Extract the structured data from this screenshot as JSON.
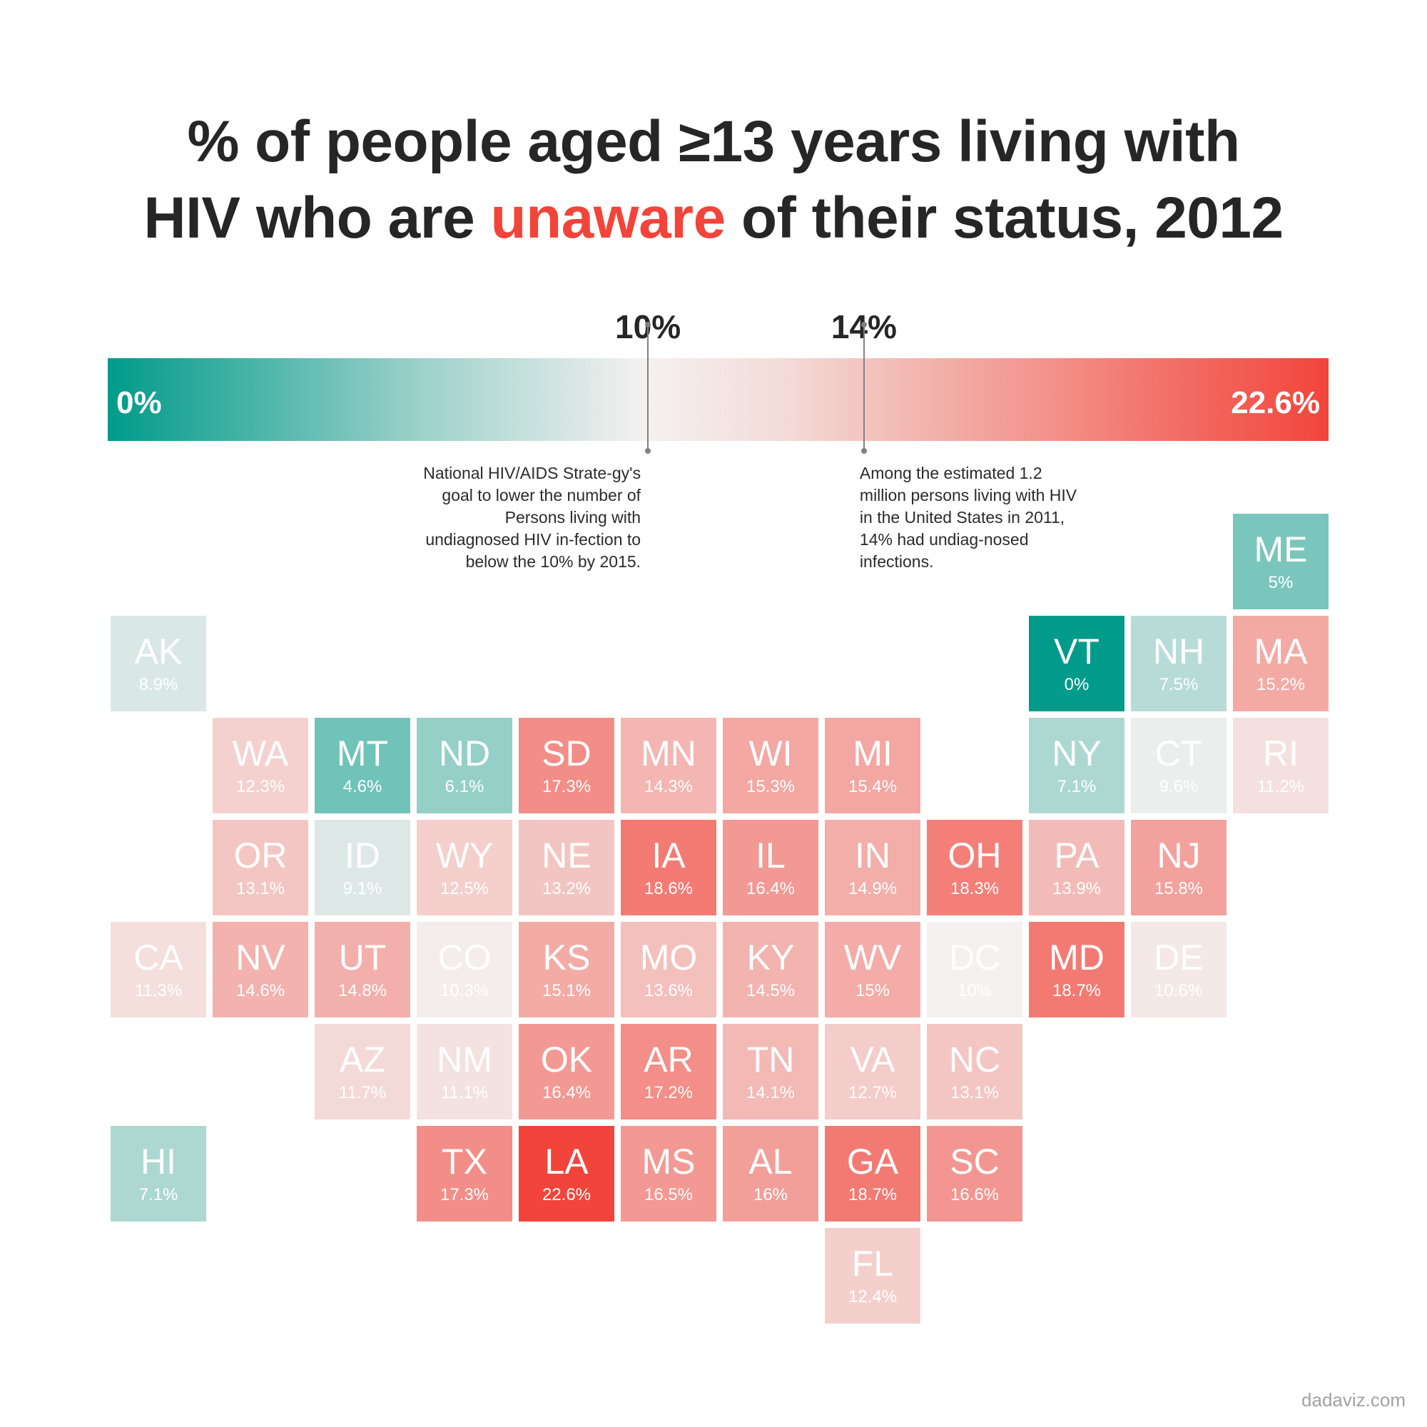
{
  "title": {
    "line1": "% of people aged ≥13 years living with",
    "line2_before": "HIV who are ",
    "line2_highlight": "unaware",
    "line2_after": " of their status, 2012"
  },
  "legend": {
    "min_label": "0%",
    "max_label": "22.6%",
    "min_value": 0,
    "max_value": 22.6,
    "low_color": "#009b8a",
    "mid_color": "#f4f1f0",
    "high_color": "#f2443a",
    "markers": [
      {
        "value": 10,
        "label": "10%",
        "note": "National HIV/AIDS Strate-gy's goal to lower the number of Persons living with undiagnosed HIV in-fection to below the 10% by 2015."
      },
      {
        "value": 14,
        "label": "14%",
        "note": "Among the estimated 1.2 million persons living with HIV in the United States in 2011, 14% had undiag-nosed infections."
      }
    ]
  },
  "map_data": {
    "type": "tile-grid",
    "states": [
      {
        "abbr": "ME",
        "label": "5%",
        "value": 5,
        "col": 11,
        "row": 0
      },
      {
        "abbr": "AK",
        "label": "8.9%",
        "value": 8.9,
        "col": 0,
        "row": 1
      },
      {
        "abbr": "VT",
        "label": "0%",
        "value": 0,
        "col": 9,
        "row": 1
      },
      {
        "abbr": "NH",
        "label": "7.5%",
        "value": 7.5,
        "col": 10,
        "row": 1
      },
      {
        "abbr": "MA",
        "label": "15.2%",
        "value": 15.2,
        "col": 11,
        "row": 1
      },
      {
        "abbr": "WA",
        "label": "12.3%",
        "value": 12.3,
        "col": 1,
        "row": 2
      },
      {
        "abbr": "MT",
        "label": "4.6%",
        "value": 4.6,
        "col": 2,
        "row": 2
      },
      {
        "abbr": "ND",
        "label": "6.1%",
        "value": 6.1,
        "col": 3,
        "row": 2
      },
      {
        "abbr": "SD",
        "label": "17.3%",
        "value": 17.3,
        "col": 4,
        "row": 2
      },
      {
        "abbr": "MN",
        "label": "14.3%",
        "value": 14.3,
        "col": 5,
        "row": 2
      },
      {
        "abbr": "WI",
        "label": "15.3%",
        "value": 15.3,
        "col": 6,
        "row": 2
      },
      {
        "abbr": "MI",
        "label": "15.4%",
        "value": 15.4,
        "col": 7,
        "row": 2
      },
      {
        "abbr": "NY",
        "label": "7.1%",
        "value": 7.1,
        "col": 9,
        "row": 2
      },
      {
        "abbr": "CT",
        "label": "9.6%",
        "value": 9.6,
        "col": 10,
        "row": 2
      },
      {
        "abbr": "RI",
        "label": "11.2%",
        "value": 11.2,
        "col": 11,
        "row": 2
      },
      {
        "abbr": "OR",
        "label": "13.1%",
        "value": 13.1,
        "col": 1,
        "row": 3
      },
      {
        "abbr": "ID",
        "label": "9.1%",
        "value": 9.1,
        "col": 2,
        "row": 3
      },
      {
        "abbr": "WY",
        "label": "12.5%",
        "value": 12.5,
        "col": 3,
        "row": 3
      },
      {
        "abbr": "NE",
        "label": "13.2%",
        "value": 13.2,
        "col": 4,
        "row": 3
      },
      {
        "abbr": "IA",
        "label": "18.6%",
        "value": 18.6,
        "col": 5,
        "row": 3
      },
      {
        "abbr": "IL",
        "label": "16.4%",
        "value": 16.4,
        "col": 6,
        "row": 3
      },
      {
        "abbr": "IN",
        "label": "14.9%",
        "value": 14.9,
        "col": 7,
        "row": 3
      },
      {
        "abbr": "OH",
        "label": "18.3%",
        "value": 18.3,
        "col": 8,
        "row": 3
      },
      {
        "abbr": "PA",
        "label": "13.9%",
        "value": 13.9,
        "col": 9,
        "row": 3
      },
      {
        "abbr": "NJ",
        "label": "15.8%",
        "value": 15.8,
        "col": 10,
        "row": 3
      },
      {
        "abbr": "CA",
        "label": "11.3%",
        "value": 11.3,
        "col": 0,
        "row": 4
      },
      {
        "abbr": "NV",
        "label": "14.6%",
        "value": 14.6,
        "col": 1,
        "row": 4
      },
      {
        "abbr": "UT",
        "label": "14.8%",
        "value": 14.8,
        "col": 2,
        "row": 4
      },
      {
        "abbr": "CO",
        "label": "10.3%",
        "value": 10.3,
        "col": 3,
        "row": 4
      },
      {
        "abbr": "KS",
        "label": "15.1%",
        "value": 15.1,
        "col": 4,
        "row": 4
      },
      {
        "abbr": "MO",
        "label": "13.6%",
        "value": 13.6,
        "col": 5,
        "row": 4
      },
      {
        "abbr": "KY",
        "label": "14.5%",
        "value": 14.5,
        "col": 6,
        "row": 4
      },
      {
        "abbr": "WV",
        "label": "15%",
        "value": 15,
        "col": 7,
        "row": 4
      },
      {
        "abbr": "DC",
        "label": "10%",
        "value": 10,
        "col": 8,
        "row": 4
      },
      {
        "abbr": "MD",
        "label": "18.7%",
        "value": 18.7,
        "col": 9,
        "row": 4
      },
      {
        "abbr": "DE",
        "label": "10.6%",
        "value": 10.6,
        "col": 10,
        "row": 4
      },
      {
        "abbr": "AZ",
        "label": "11.7%",
        "value": 11.7,
        "col": 2,
        "row": 5
      },
      {
        "abbr": "NM",
        "label": "11.1%",
        "value": 11.1,
        "col": 3,
        "row": 5
      },
      {
        "abbr": "OK",
        "label": "16.4%",
        "value": 16.4,
        "col": 4,
        "row": 5
      },
      {
        "abbr": "AR",
        "label": "17.2%",
        "value": 17.2,
        "col": 5,
        "row": 5
      },
      {
        "abbr": "TN",
        "label": "14.1%",
        "value": 14.1,
        "col": 6,
        "row": 5
      },
      {
        "abbr": "VA",
        "label": "12.7%",
        "value": 12.7,
        "col": 7,
        "row": 5
      },
      {
        "abbr": "NC",
        "label": "13.1%",
        "value": 13.1,
        "col": 8,
        "row": 5
      },
      {
        "abbr": "HI",
        "label": "7.1%",
        "value": 7.1,
        "col": 0,
        "row": 6
      },
      {
        "abbr": "TX",
        "label": "17.3%",
        "value": 17.3,
        "col": 3,
        "row": 6
      },
      {
        "abbr": "LA",
        "label": "22.6%",
        "value": 22.6,
        "col": 4,
        "row": 6
      },
      {
        "abbr": "MS",
        "label": "16.5%",
        "value": 16.5,
        "col": 5,
        "row": 6
      },
      {
        "abbr": "AL",
        "label": "16%",
        "value": 16,
        "col": 6,
        "row": 6
      },
      {
        "abbr": "GA",
        "label": "18.7%",
        "value": 18.7,
        "col": 7,
        "row": 6
      },
      {
        "abbr": "SC",
        "label": "16.6%",
        "value": 16.6,
        "col": 8,
        "row": 6
      },
      {
        "abbr": "FL",
        "label": "12.4%",
        "value": 12.4,
        "col": 7,
        "row": 7
      }
    ]
  },
  "credit": "dadaviz.com"
}
